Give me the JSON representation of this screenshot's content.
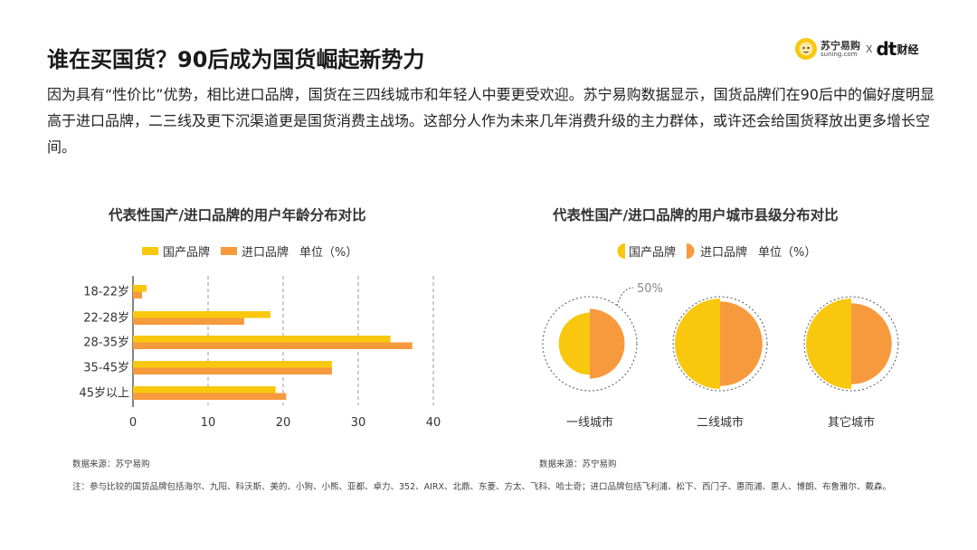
{
  "page": {
    "title": "谁在买国货？90后成为国货崛起新势力",
    "intro": "因为具有“性价比”优势，相比进口品牌，国货在三四线城市和年轻人中要更受欢迎。苏宁易购数据显示，国货品牌们在90后中的偏好度明显高于进口品牌，二三线及更下沉渠道更是国货消费主战场。这部分人作为未来几年消费升级的主力群体，或许还会给国货释放出更多增长空间。",
    "logo": {
      "brand_cn": "苏宁易购",
      "brand_en": "suning.com",
      "x": "X",
      "dt": "dt",
      "caijing": "财经"
    },
    "note": "注：参与比较的国货品牌包括海尔、九阳、科沃斯、美的、小狗、小熊、亚都、卓力、352、AIRX、北鼎、东菱、方太、飞科、哈士奇；进口品牌包括飞利浦、松下、西门子、惠而浦、惠人、博朗、布鲁雅尔、戴森。"
  },
  "colors": {
    "domestic": "#f9c70d",
    "imported": "#f79a3e",
    "grid": "#999999",
    "axis": "#333333"
  },
  "chart_data": [
    {
      "type": "bar",
      "orientation": "horizontal",
      "title": "代表性国产/进口品牌的用户年龄分布对比",
      "unit_label": "单位（%）",
      "categories": [
        "18-22岁",
        "22-28岁",
        "28-35岁",
        "35-45岁",
        "45岁以上"
      ],
      "series": [
        {
          "name": "国产品牌",
          "values": [
            1.8,
            18.3,
            34.3,
            26.5,
            19.0
          ]
        },
        {
          "name": "进口品牌",
          "values": [
            1.2,
            14.8,
            37.2,
            26.5,
            20.4
          ]
        }
      ],
      "xticks": [
        0,
        10,
        20,
        30,
        40
      ],
      "xlim": [
        0,
        40
      ],
      "grid": "vertical-dashed",
      "legend": "top",
      "source": "数据来源：苏宁易购"
    },
    {
      "type": "pie",
      "title": "代表性国产/进口品牌的用户城市县级分布对比",
      "unit_label": "单位（%）",
      "reference_label": "50%",
      "reference_value": 50,
      "series_names": [
        "国产品牌",
        "进口品牌"
      ],
      "categories": [
        "一线城市",
        "二线城市",
        "其它城市"
      ],
      "domestic": [
        33,
        48,
        48
      ],
      "imported": [
        37,
        45,
        43
      ],
      "legend": "top",
      "source": "数据来源：苏宁易购"
    }
  ]
}
